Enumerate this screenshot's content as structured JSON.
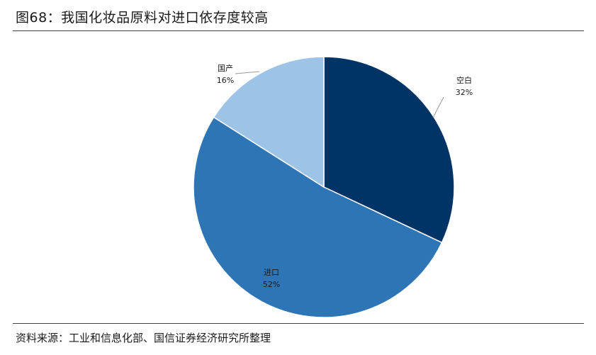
{
  "title": "图68：我国化妆品原料对进口依存度较高",
  "source": "资料来源：工业和信息化部、国信证券经济研究所整理",
  "chart_data": {
    "type": "pie",
    "slices": [
      {
        "name": "空白",
        "value": 32,
        "label": "32%",
        "color": "#003366"
      },
      {
        "name": "进口",
        "value": 52,
        "label": "52%",
        "color": "#2E75B6"
      },
      {
        "name": "国产",
        "value": 16,
        "label": "16%",
        "color": "#9DC3E6"
      }
    ],
    "start_angle": "12 o'clock",
    "direction": "clockwise",
    "legend": "none"
  }
}
